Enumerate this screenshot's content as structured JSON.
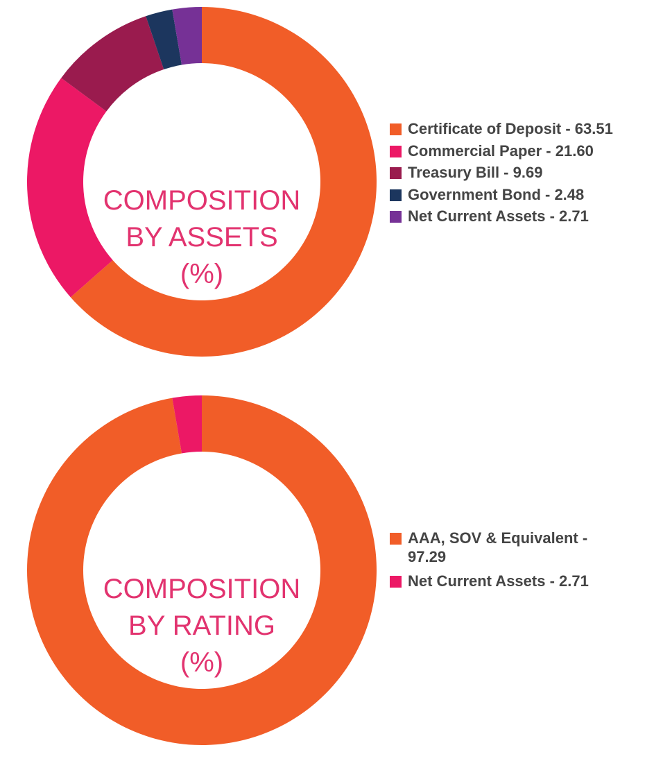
{
  "chart_data": [
    {
      "type": "pie",
      "title": "COMPOSITION BY ASSETS (%)",
      "title_lines": [
        "COMPOSITION",
        "BY ASSETS",
        "(%)"
      ],
      "categories": [
        "Certificate of Deposit",
        "Commercial Paper",
        "Treasury Bill",
        "Government Bond",
        "Net Current Assets"
      ],
      "values": [
        63.51,
        21.6,
        9.69,
        2.48,
        2.71
      ],
      "colors": [
        "#F15D28",
        "#EC1865",
        "#9A1B4E",
        "#1C365E",
        "#763196"
      ],
      "legend_labels": [
        "Certificate of Deposit - 63.51",
        "Commercial Paper - 21.60",
        "Treasury Bill - 9.69",
        "Government Bond - 2.48",
        "Net Current Assets - 2.71"
      ],
      "legend": "right"
    },
    {
      "type": "pie",
      "title": "COMPOSITION BY RATING (%)",
      "title_lines": [
        "COMPOSITION",
        "BY RATING",
        "(%)"
      ],
      "categories": [
        "AAA, SOV & Equivalent",
        "Net Current Assets"
      ],
      "values": [
        97.29,
        2.71
      ],
      "colors": [
        "#F15D28",
        "#EC1865"
      ],
      "legend_labels": [
        "AAA, SOV & Equivalent - 97.29",
        "Net Current Assets - 2.71"
      ],
      "legend": "right"
    }
  ]
}
